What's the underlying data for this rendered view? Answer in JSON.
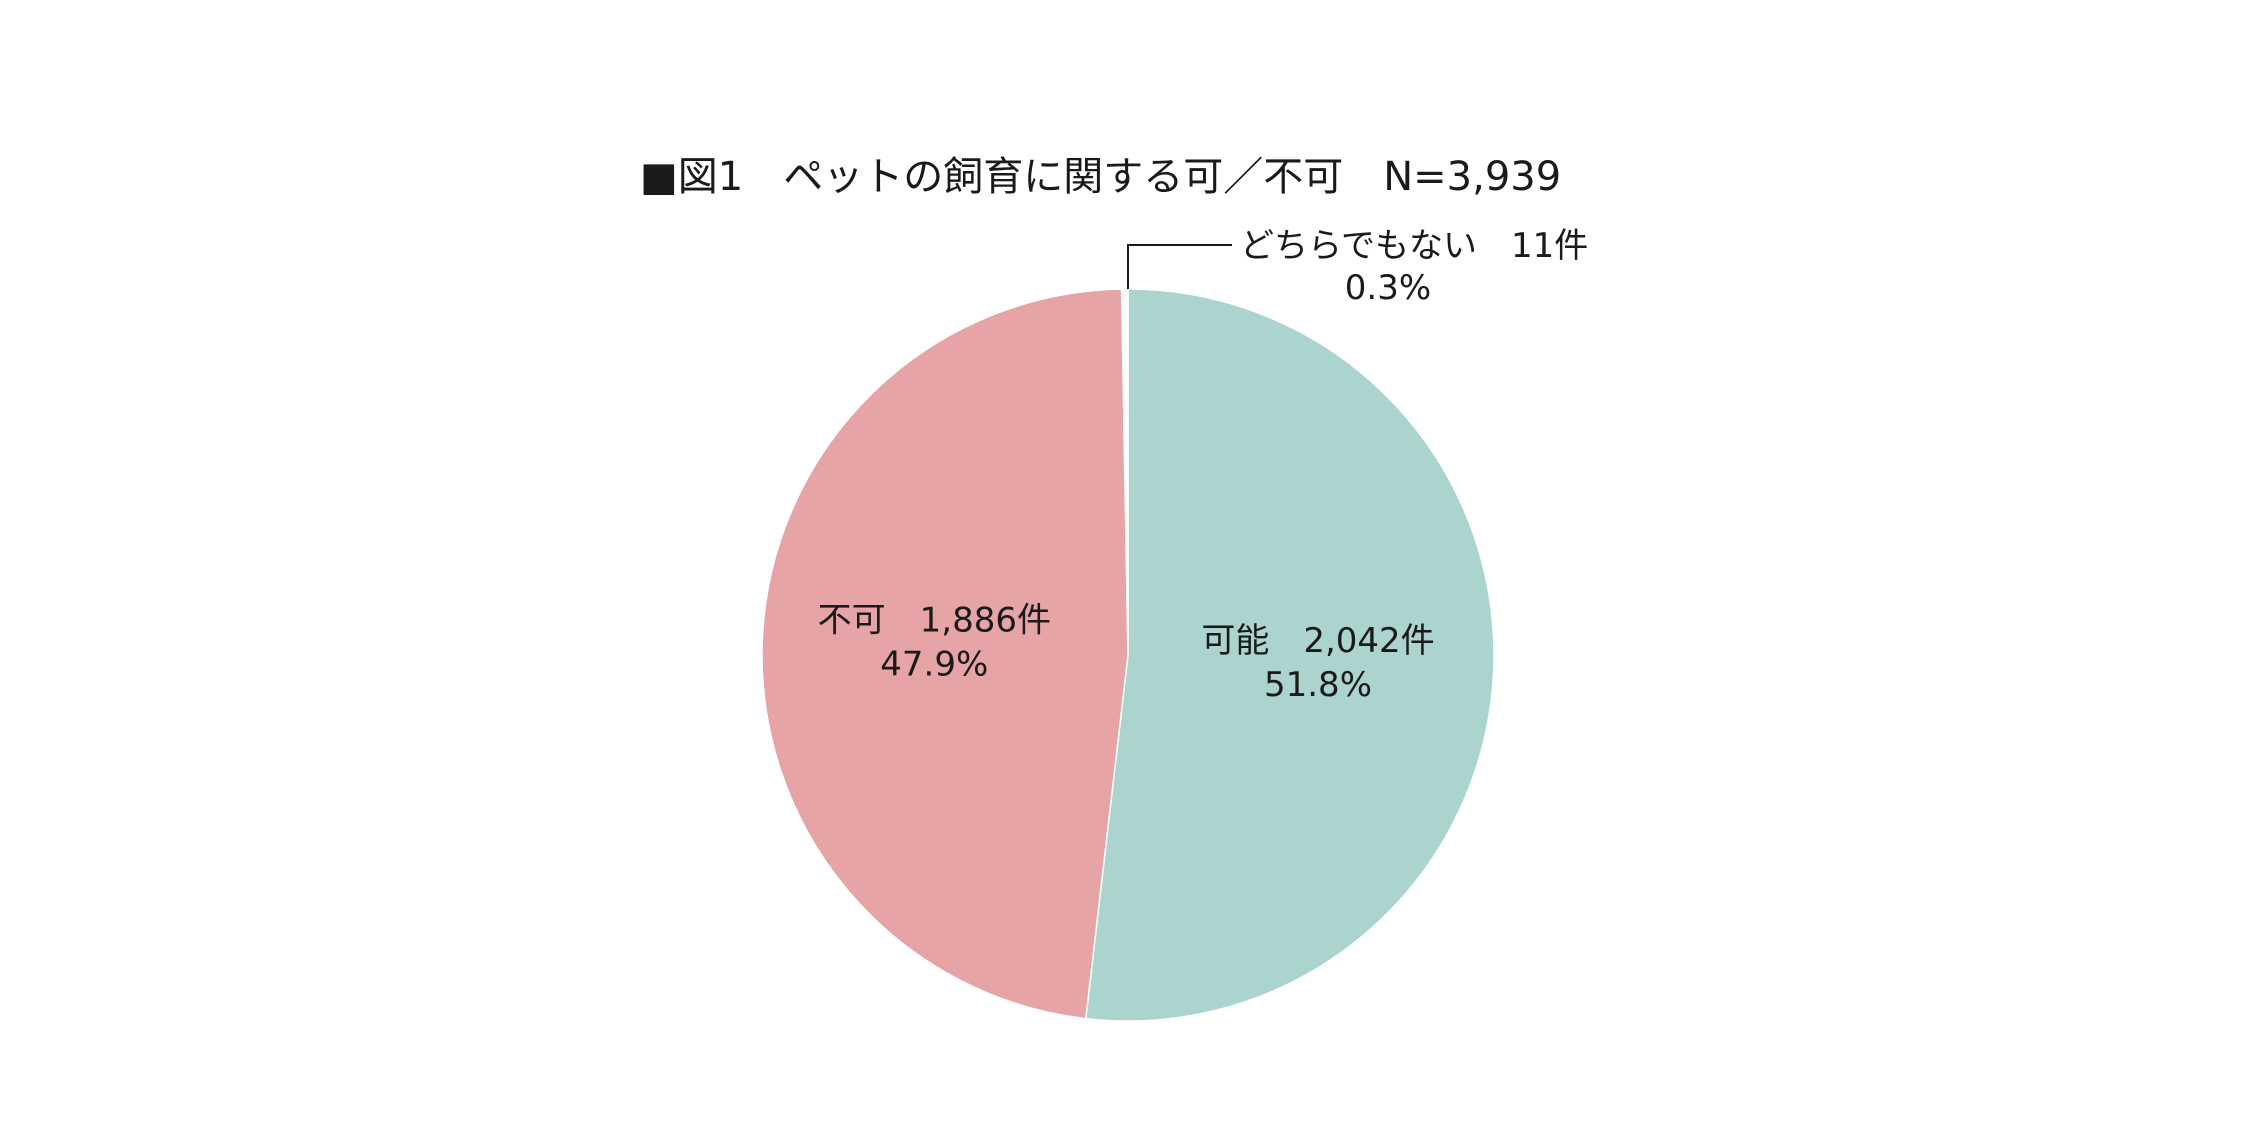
{
  "chart_data": {
    "type": "pie",
    "title": "■図1　ペットの飼育に関する可／不可　N=3,939",
    "total": 3939,
    "start": "12 o'clock",
    "direction": "clockwise",
    "slices": [
      {
        "key": "possible",
        "label": "可能",
        "count": 2042,
        "count_text": "2,042件",
        "percent": 51.8,
        "percent_text": "51.8%",
        "color": "#aad4cd"
      },
      {
        "key": "not-possible",
        "label": "不可",
        "count": 1886,
        "count_text": "1,886件",
        "percent": 47.9,
        "percent_text": "47.9%",
        "color": "#e6a4a7"
      },
      {
        "key": "neither",
        "label": "どちらでもない",
        "count": 11,
        "count_text": "11件",
        "percent": 0.3,
        "percent_text": "0.3%",
        "color": "#ffffff"
      }
    ]
  }
}
